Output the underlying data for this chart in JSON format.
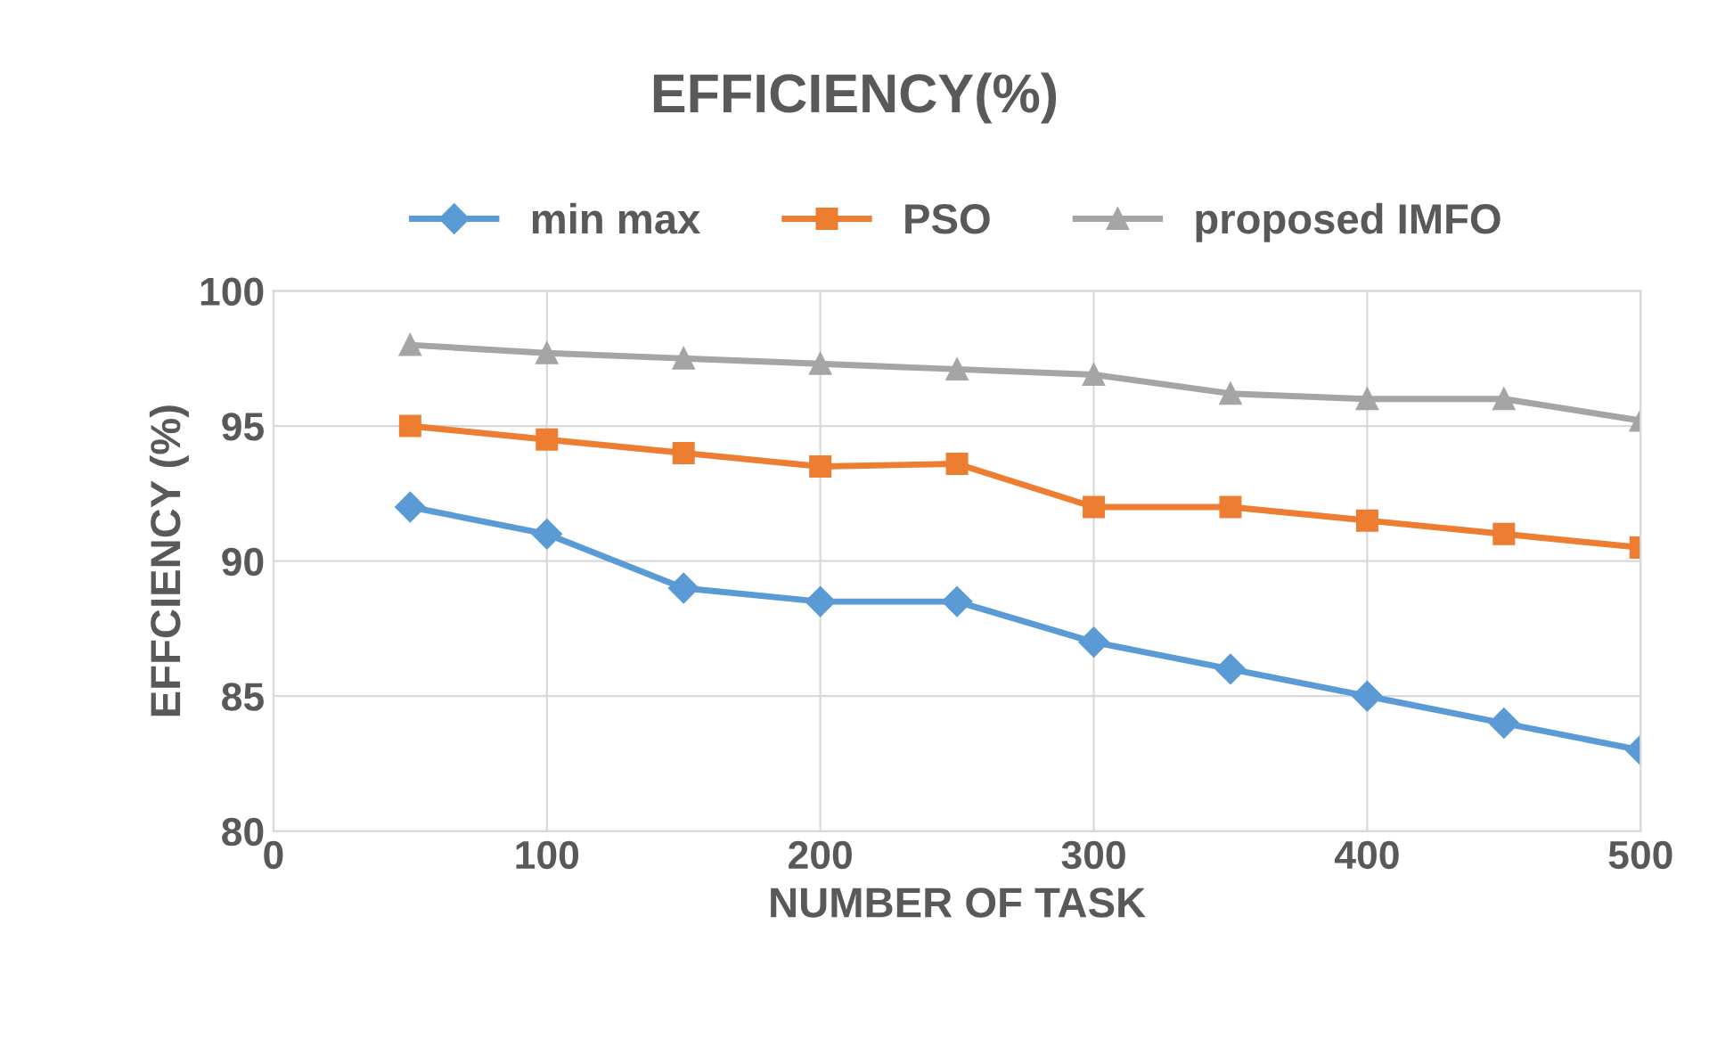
{
  "chart_data": {
    "type": "line",
    "title": "EFFICIENCY(%)",
    "xlabel": "NUMBER OF TASK",
    "ylabel": "EFFCIENCY (%)",
    "x": [
      50,
      100,
      150,
      200,
      250,
      300,
      350,
      400,
      450,
      500
    ],
    "series": [
      {
        "name": "min max",
        "color": "#5b9bd5",
        "marker": "diamond",
        "values": [
          92,
          91,
          89,
          88.5,
          88.5,
          87,
          86,
          85,
          84,
          83
        ]
      },
      {
        "name": "PSO",
        "color": "#ed7d31",
        "marker": "square",
        "values": [
          95,
          94.5,
          94,
          93.5,
          93.6,
          92,
          92,
          91.5,
          91,
          90.5
        ]
      },
      {
        "name": "proposed IMFO",
        "color": "#a5a5a5",
        "marker": "triangle",
        "values": [
          98,
          97.7,
          97.5,
          97.3,
          97.1,
          96.9,
          96.2,
          96,
          96,
          95.2
        ]
      }
    ],
    "xlim": [
      0,
      500
    ],
    "xticks": [
      0,
      100,
      200,
      300,
      400,
      500
    ],
    "ylim": [
      80,
      100
    ],
    "yticks": [
      80,
      85,
      90,
      95,
      100
    ],
    "grid": true,
    "legend": "top",
    "line_style": "solid"
  }
}
